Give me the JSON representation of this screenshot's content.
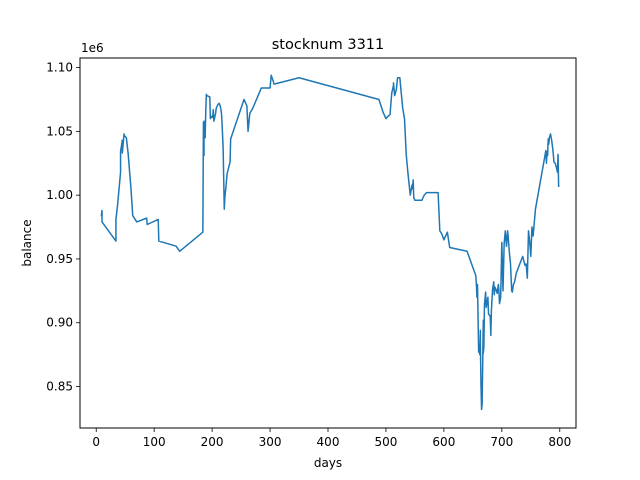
{
  "chart_data": {
    "type": "line",
    "title": "stocknum 3311",
    "xlabel": "days",
    "ylabel": "balance",
    "y_offset_label": "1e6",
    "xlim": [
      -28,
      828
    ],
    "ylim": [
      0.8175,
      1.1075
    ],
    "xticks": [
      0,
      100,
      200,
      300,
      400,
      500,
      600,
      700,
      800
    ],
    "xtick_labels": [
      "0",
      "100",
      "200",
      "300",
      "400",
      "500",
      "600",
      "700",
      "800"
    ],
    "yticks": [
      0.85,
      0.9,
      0.95,
      1.0,
      1.05,
      1.1
    ],
    "ytick_labels": [
      "0.85",
      "0.90",
      "0.95",
      "1.00",
      "1.05",
      "1.10"
    ],
    "grid": false,
    "series": [
      {
        "color": "#1f77b4",
        "x": [
          9,
          10,
          10,
          10,
          34,
          34,
          37,
          42,
          42,
          45,
          45,
          48,
          48,
          52,
          55,
          60,
          63,
          70,
          87,
          88,
          107,
          108,
          138,
          144,
          184,
          185,
          186,
          186,
          188,
          189,
          190,
          191,
          196,
          197,
          200,
          201,
          202,
          203,
          206,
          207,
          209,
          210,
          212,
          214,
          216,
          217,
          219,
          221,
          222,
          226,
          231,
          232,
          255,
          260,
          262,
          265,
          270,
          285,
          300,
          302,
          305,
          307,
          350,
          488,
          495,
          500,
          504,
          507,
          510,
          513,
          513,
          515,
          518,
          520,
          520,
          524,
          526,
          529,
          532,
          535,
          538,
          542,
          545,
          546,
          547,
          548,
          550,
          562,
          562,
          563,
          564,
          566,
          570,
          588,
          590,
          593,
          596,
          600,
          603,
          606,
          610,
          640,
          655,
          656,
          657,
          658,
          660,
          661,
          662,
          663,
          663,
          664,
          665,
          666,
          667,
          668,
          668,
          669,
          670,
          671,
          672,
          673,
          676,
          677,
          680,
          681,
          682,
          684,
          686,
          687,
          688,
          690,
          692,
          694,
          695,
          696,
          698,
          700,
          702,
          704,
          706,
          708,
          710,
          711,
          713,
          715,
          717,
          718,
          720,
          722,
          725,
          736,
          740,
          742,
          744,
          746,
          748,
          750,
          752,
          754,
          758,
          776,
          777,
          778,
          779,
          780,
          781,
          782,
          784,
          786,
          788,
          790,
          792,
          794,
          796,
          797,
          798
        ],
        "y": [
          0.984,
          0.988,
          0.983,
          0.979,
          0.964,
          0.981,
          0.993,
          1.018,
          1.034,
          1.043,
          1.033,
          1.048,
          1.047,
          1.045,
          1.033,
          1.005,
          0.984,
          0.979,
          0.982,
          0.977,
          0.981,
          0.964,
          0.96,
          0.956,
          0.971,
          1.057,
          1.031,
          1.058,
          1.045,
          1.065,
          1.079,
          1.078,
          1.077,
          1.06,
          1.062,
          1.061,
          1.067,
          1.058,
          1.064,
          1.068,
          1.07,
          1.071,
          1.072,
          1.07,
          1.065,
          1.058,
          1.037,
          0.989,
          0.998,
          1.017,
          1.026,
          1.044,
          1.075,
          1.07,
          1.05,
          1.064,
          1.068,
          1.084,
          1.084,
          1.094,
          1.09,
          1.087,
          1.092,
          1.075,
          1.065,
          1.06,
          1.062,
          1.063,
          1.08,
          1.086,
          1.088,
          1.078,
          1.083,
          1.092,
          1.092,
          1.092,
          1.082,
          1.068,
          1.06,
          1.032,
          1.017,
          1.0,
          1.008,
          1.005,
          1.012,
          0.998,
          0.996,
          0.996,
          0.996,
          0.997,
          0.998,
          1.0,
          1.002,
          1.002,
          1.002,
          0.972,
          0.97,
          0.965,
          0.968,
          0.971,
          0.959,
          0.956,
          0.937,
          0.931,
          0.92,
          0.93,
          0.877,
          0.882,
          0.875,
          0.894,
          0.884,
          0.852,
          0.832,
          0.836,
          0.868,
          0.902,
          0.876,
          0.881,
          0.914,
          0.919,
          0.924,
          0.912,
          0.92,
          0.907,
          0.905,
          0.89,
          0.91,
          0.926,
          0.932,
          0.922,
          0.928,
          0.926,
          0.923,
          0.93,
          0.925,
          0.915,
          0.92,
          0.963,
          0.925,
          0.962,
          0.972,
          0.96,
          0.972,
          0.967,
          0.955,
          0.946,
          0.925,
          0.924,
          0.93,
          0.932,
          0.939,
          0.952,
          0.945,
          0.946,
          0.935,
          0.972,
          0.964,
          0.952,
          0.975,
          0.968,
          0.989,
          1.035,
          1.025,
          1.034,
          1.031,
          1.044,
          1.04,
          1.045,
          1.048,
          1.043,
          1.036,
          1.026,
          1.025,
          1.022,
          1.018,
          1.032,
          1.007
        ]
      }
    ]
  }
}
